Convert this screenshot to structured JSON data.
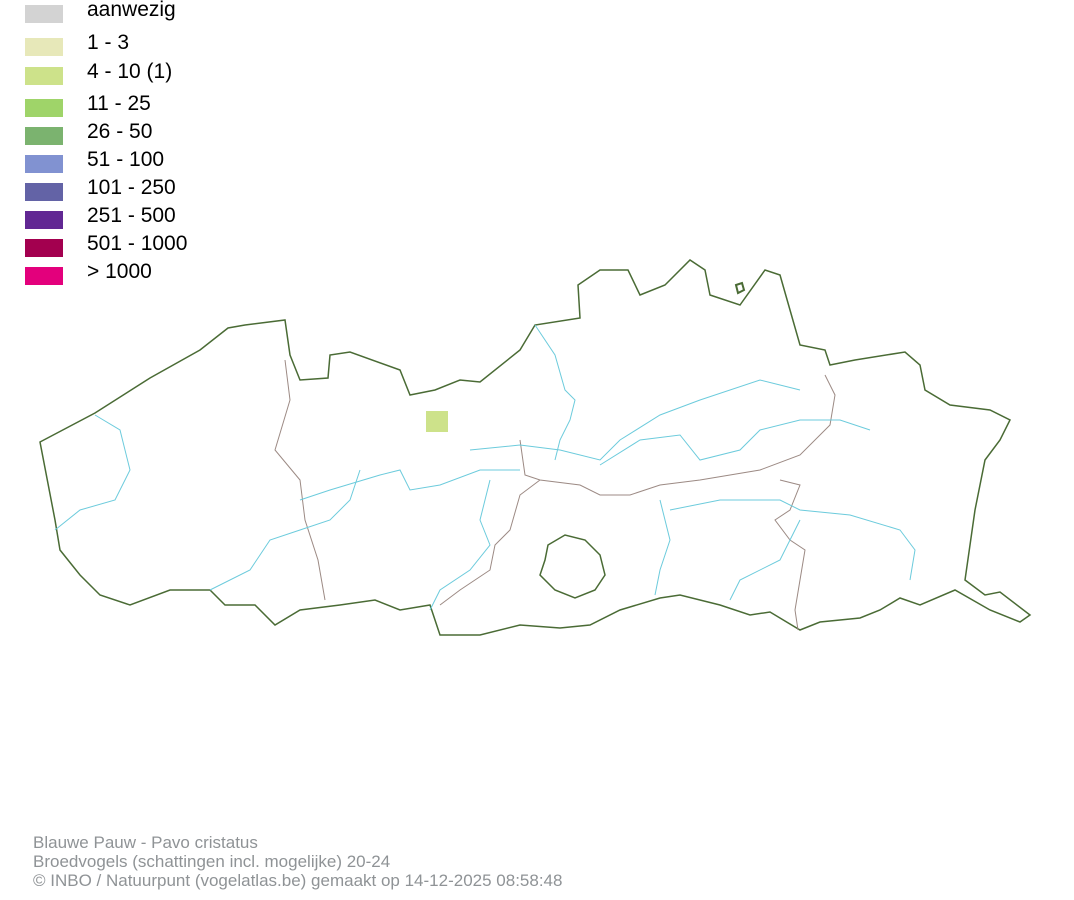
{
  "legend": [
    {
      "label": "aanwezig",
      "color": "#d3d3d3"
    },
    {
      "label": "1 - 3",
      "color": "#e7e8b9"
    },
    {
      "label": "4 - 10 (1)",
      "color": "#cde28a"
    },
    {
      "label": "11 - 25",
      "color": "#9fd469"
    },
    {
      "label": "26 - 50",
      "color": "#7bb36f"
    },
    {
      "label": "51 - 100",
      "color": "#8192d1"
    },
    {
      "label": "101 - 250",
      "color": "#6363a6"
    },
    {
      "label": "251 - 500",
      "color": "#612793"
    },
    {
      "label": "501 - 1000",
      "color": "#a3004f"
    },
    {
      "label": "> 1000",
      "color": "#e3007c"
    }
  ],
  "map": {
    "border_color": "#4a6b35",
    "province_color": "#9c8a84",
    "river_color": "#6ccbdc",
    "occupied_cells": [
      {
        "category": "4 - 10 (1)",
        "color": "#cde28a"
      }
    ]
  },
  "footer": {
    "species": "Blauwe Pauw - Pavo cristatus",
    "dataset": "Broedvogels (schattingen incl. mogelijke) 20-24",
    "credit": "© INBO / Natuurpunt (vogelatlas.be) gemaakt op 14-12-2025 08:58:48"
  }
}
